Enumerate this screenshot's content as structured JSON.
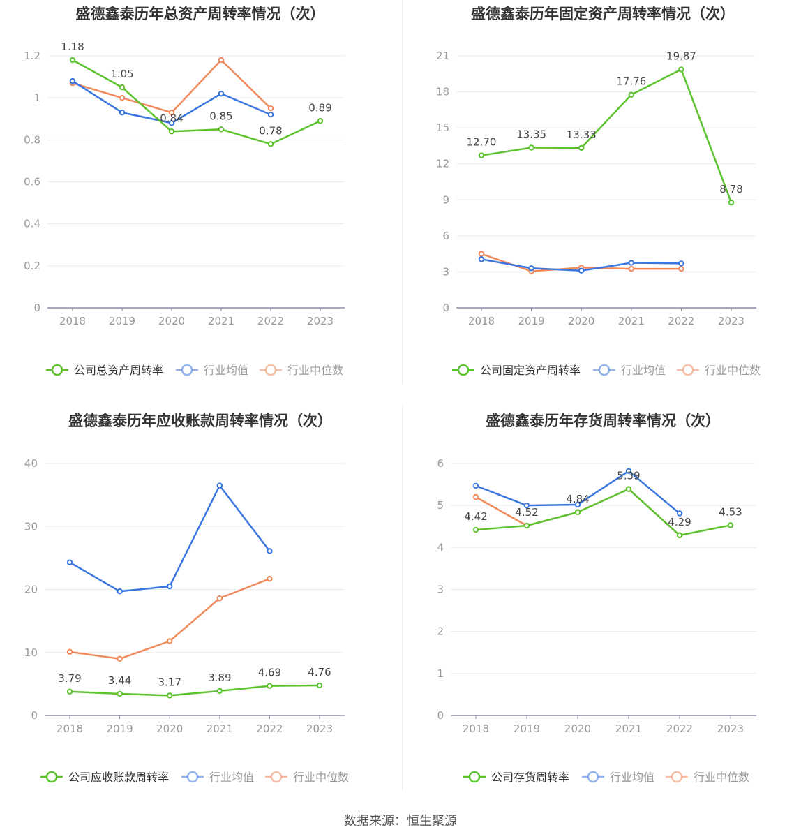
{
  "source_text": "数据来源：恒生聚源",
  "colors": {
    "company": "#5cc22e",
    "mean": "#3a76df",
    "median": "#f08a5d",
    "axis": "#8a8ea8",
    "grid": "#e9ebf3",
    "tick_text": "#999999",
    "label_text": "#444444"
  },
  "chart_data": [
    {
      "type": "line",
      "title": "盛德鑫泰历年总资产周转率情况（次）",
      "x": [
        "2018",
        "2019",
        "2020",
        "2021",
        "2022",
        "2023"
      ],
      "yticks": [
        "0",
        "0.2",
        "0.4",
        "0.6",
        "0.8",
        "1",
        "1.2"
      ],
      "ylim": [
        0,
        1.2
      ],
      "grid": true,
      "legend_position": "bottom",
      "series": [
        {
          "name": "公司总资产周转率",
          "key": "company",
          "values": [
            1.18,
            1.05,
            0.84,
            0.85,
            0.78,
            0.89
          ],
          "labels": [
            "1.18",
            "1.05",
            "0.84",
            "0.85",
            "0.78",
            "0.89"
          ]
        },
        {
          "name": "行业均值",
          "key": "mean",
          "values": [
            1.08,
            0.93,
            0.88,
            1.02,
            0.92,
            null
          ]
        },
        {
          "name": "行业中位数",
          "key": "median",
          "values": [
            1.07,
            1.0,
            0.93,
            1.18,
            0.95,
            null
          ]
        }
      ]
    },
    {
      "type": "line",
      "title": "盛德鑫泰历年固定资产周转率情况（次）",
      "x": [
        "2018",
        "2019",
        "2020",
        "2021",
        "2022",
        "2023"
      ],
      "yticks": [
        "0",
        "3",
        "6",
        "9",
        "12",
        "15",
        "18",
        "21"
      ],
      "ylim": [
        0,
        21
      ],
      "grid": true,
      "legend_position": "bottom",
      "series": [
        {
          "name": "公司固定资产周转率",
          "key": "company",
          "values": [
            12.7,
            13.35,
            13.33,
            17.76,
            19.87,
            8.78
          ],
          "labels": [
            "12.70",
            "13.35",
            "13.33",
            "17.76",
            "19.87",
            "8.78"
          ]
        },
        {
          "name": "行业均值",
          "key": "mean",
          "values": [
            4.05,
            3.3,
            3.1,
            3.75,
            3.7,
            null
          ]
        },
        {
          "name": "行业中位数",
          "key": "median",
          "values": [
            4.5,
            3.05,
            3.35,
            3.25,
            3.25,
            null
          ]
        }
      ]
    },
    {
      "type": "line",
      "title": "盛德鑫泰历年应收账款周转率情况（次）",
      "x": [
        "2018",
        "2019",
        "2020",
        "2021",
        "2022",
        "2023"
      ],
      "yticks": [
        "0",
        "10",
        "20",
        "30",
        "40"
      ],
      "ylim": [
        0,
        40
      ],
      "grid": true,
      "legend_position": "bottom",
      "series": [
        {
          "name": "公司应收账款周转率",
          "key": "company",
          "values": [
            3.79,
            3.44,
            3.17,
            3.89,
            4.69,
            4.76
          ],
          "labels": [
            "3.79",
            "3.44",
            "3.17",
            "3.89",
            "4.69",
            "4.76"
          ]
        },
        {
          "name": "行业均值",
          "key": "mean",
          "values": [
            24.3,
            19.7,
            20.5,
            36.5,
            26.1,
            null
          ]
        },
        {
          "name": "行业中位数",
          "key": "median",
          "values": [
            10.1,
            9.0,
            11.8,
            18.6,
            21.7,
            null
          ]
        }
      ]
    },
    {
      "type": "line",
      "title": "盛德鑫泰历年存货周转率情况（次）",
      "x": [
        "2018",
        "2019",
        "2020",
        "2021",
        "2022",
        "2023"
      ],
      "yticks": [
        "0",
        "1",
        "2",
        "3",
        "4",
        "5",
        "6"
      ],
      "ylim": [
        0,
        6
      ],
      "grid": true,
      "legend_position": "bottom",
      "series": [
        {
          "name": "公司存货周转率",
          "key": "company",
          "values": [
            4.42,
            4.52,
            4.84,
            5.39,
            4.29,
            4.53
          ],
          "labels": [
            "4.42",
            "4.52",
            "4.84",
            "5.39",
            "4.29",
            "4.53"
          ]
        },
        {
          "name": "行业均值",
          "key": "mean",
          "values": [
            5.47,
            5.0,
            5.02,
            5.82,
            4.81,
            null
          ]
        },
        {
          "name": "行业中位数",
          "key": "median",
          "values": [
            5.2,
            4.52,
            4.84,
            5.39,
            4.29,
            null
          ]
        }
      ]
    }
  ]
}
